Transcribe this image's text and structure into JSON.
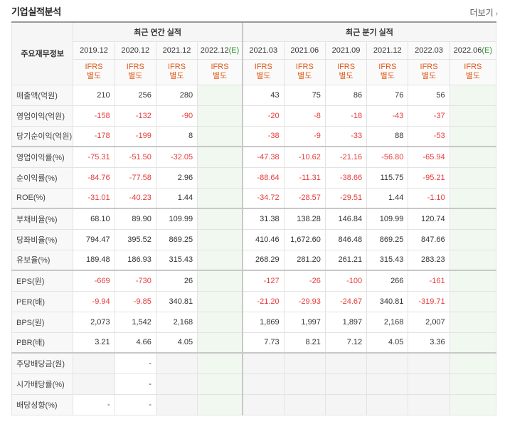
{
  "header": {
    "title": "기업실적분석",
    "more_label": "더보기"
  },
  "table": {
    "corner_label": "주요재무정보",
    "annual_group_label": "최근 연간 실적",
    "quarter_group_label": "최근 분기 실적",
    "ifrs_line1": "IFRS",
    "ifrs_line2": "별도",
    "periods": [
      {
        "label": "2019.12",
        "estimate": false
      },
      {
        "label": "2020.12",
        "estimate": false
      },
      {
        "label": "2021.12",
        "estimate": false
      },
      {
        "label": "2022.12",
        "estimate": true,
        "estimate_mark": "(E)"
      },
      {
        "label": "2021.03",
        "estimate": false
      },
      {
        "label": "2021.06",
        "estimate": false
      },
      {
        "label": "2021.09",
        "estimate": false
      },
      {
        "label": "2021.12",
        "estimate": false
      },
      {
        "label": "2022.03",
        "estimate": false
      },
      {
        "label": "2022.06",
        "estimate": true,
        "estimate_mark": "(E)"
      }
    ],
    "rows": [
      {
        "label": "매출액(억원)",
        "values": [
          "210",
          "256",
          "280",
          "",
          "43",
          "75",
          "86",
          "76",
          "56",
          ""
        ]
      },
      {
        "label": "영업이익(억원)",
        "values": [
          "-158",
          "-132",
          "-90",
          "",
          "-20",
          "-8",
          "-18",
          "-43",
          "-37",
          ""
        ]
      },
      {
        "label": "당기순이익(억원)",
        "values": [
          "-178",
          "-199",
          "8",
          "",
          "-38",
          "-9",
          "-33",
          "88",
          "-53",
          ""
        ]
      },
      {
        "label": "영업이익률(%)",
        "values": [
          "-75.31",
          "-51.50",
          "-32.05",
          "",
          "-47.38",
          "-10.62",
          "-21.16",
          "-56.80",
          "-65.94",
          ""
        ]
      },
      {
        "label": "순이익률(%)",
        "values": [
          "-84.76",
          "-77.58",
          "2.96",
          "",
          "-88.64",
          "-11.31",
          "-38.66",
          "115.75",
          "-95.21",
          ""
        ]
      },
      {
        "label": "ROE(%)",
        "values": [
          "-31.01",
          "-40.23",
          "1.44",
          "",
          "-34.72",
          "-28.57",
          "-29.51",
          "1.44",
          "-1.10",
          ""
        ]
      },
      {
        "label": "부채비율(%)",
        "values": [
          "68.10",
          "89.90",
          "109.99",
          "",
          "31.38",
          "138.28",
          "146.84",
          "109.99",
          "120.74",
          ""
        ]
      },
      {
        "label": "당좌비율(%)",
        "values": [
          "794.47",
          "395.52",
          "869.25",
          "",
          "410.46",
          "1,672.60",
          "846.48",
          "869.25",
          "847.66",
          ""
        ]
      },
      {
        "label": "유보율(%)",
        "values": [
          "189.48",
          "186.93",
          "315.43",
          "",
          "268.29",
          "281.20",
          "261.21",
          "315.43",
          "283.23",
          ""
        ]
      },
      {
        "label": "EPS(원)",
        "values": [
          "-669",
          "-730",
          "26",
          "",
          "-127",
          "-26",
          "-100",
          "266",
          "-161",
          ""
        ]
      },
      {
        "label": "PER(배)",
        "values": [
          "-9.94",
          "-9.85",
          "340.81",
          "",
          "-21.20",
          "-29.93",
          "-24.67",
          "340.81",
          "-319.71",
          ""
        ]
      },
      {
        "label": "BPS(원)",
        "values": [
          "2,073",
          "1,542",
          "2,168",
          "",
          "1,869",
          "1,997",
          "1,897",
          "2,168",
          "2,007",
          ""
        ]
      },
      {
        "label": "PBR(배)",
        "values": [
          "3.21",
          "4.66",
          "4.05",
          "",
          "7.73",
          "8.21",
          "7.12",
          "4.05",
          "3.36",
          ""
        ]
      },
      {
        "label": "주당배당금(원)",
        "values": [
          "",
          "-",
          "",
          "",
          "",
          "",
          "",
          "",
          "",
          ""
        ]
      },
      {
        "label": "시가배당률(%)",
        "values": [
          "",
          "-",
          "",
          "",
          "",
          "",
          "",
          "",
          "",
          ""
        ]
      },
      {
        "label": "배당성향(%)",
        "values": [
          "-",
          "-",
          "",
          "",
          "",
          "",
          "",
          "",
          "",
          ""
        ]
      }
    ]
  },
  "colors": {
    "negative": "#e83b3b",
    "ifrs": "#e05a1a",
    "estimate_mark": "#2f9a2f",
    "estimate_bg": "#f0f8f0"
  }
}
